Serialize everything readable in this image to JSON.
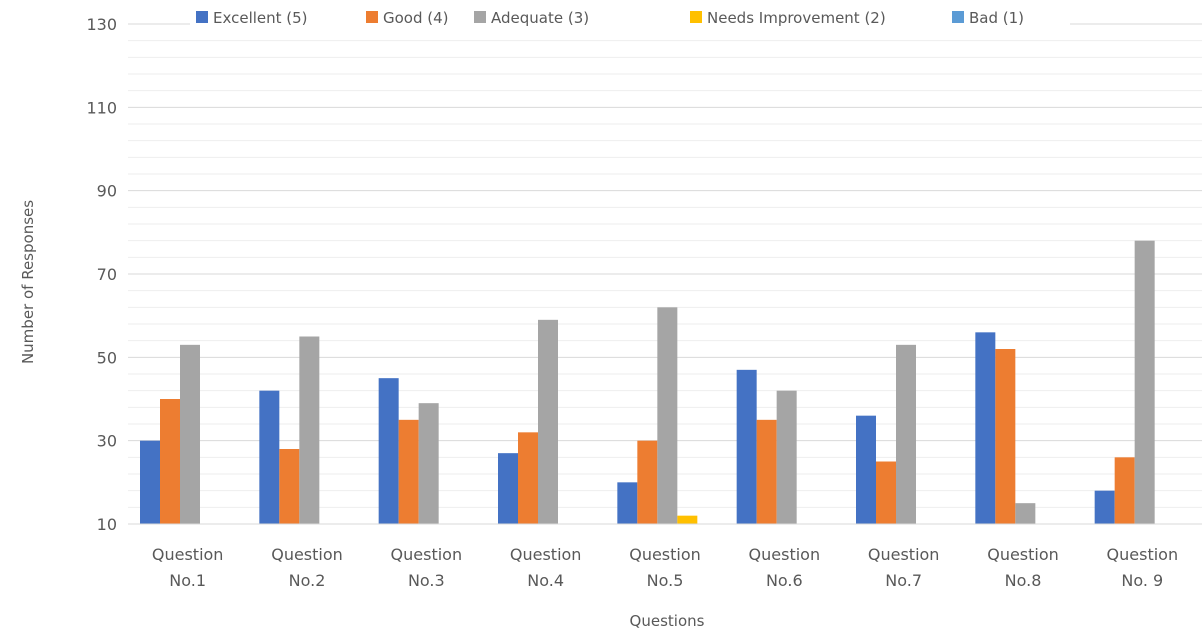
{
  "chart_data": {
    "type": "bar",
    "title": "",
    "xlabel": "Questions",
    "ylabel": "Number of Responses",
    "ylim": [
      10,
      130
    ],
    "yticks": [
      10,
      30,
      50,
      70,
      90,
      110,
      130
    ],
    "grid": true,
    "legend_position": "top",
    "categories": [
      [
        "Question",
        "No.1"
      ],
      [
        "Question",
        "No.2"
      ],
      [
        "Question",
        "No.3"
      ],
      [
        "Question",
        "No.4"
      ],
      [
        "Question",
        "No.5"
      ],
      [
        "Question",
        "No.6"
      ],
      [
        "Question",
        "No.7"
      ],
      [
        "Question",
        "No.8"
      ],
      [
        "Question",
        "No. 9"
      ]
    ],
    "series": [
      {
        "name": "Excellent (5)",
        "color": "#4472C4",
        "values": [
          30,
          42,
          45,
          27,
          20,
          47,
          36,
          56,
          18
        ]
      },
      {
        "name": "Good (4)",
        "color": "#ED7D31",
        "values": [
          40,
          28,
          35,
          32,
          30,
          35,
          25,
          52,
          26
        ]
      },
      {
        "name": "Adequate (3)",
        "color": "#A5A5A5",
        "values": [
          53,
          55,
          39,
          59,
          62,
          42,
          53,
          15,
          78
        ]
      },
      {
        "name": "Needs Improvement (2)",
        "color": "#FFC000",
        "values": [
          0,
          0,
          0,
          0,
          12,
          0,
          0,
          0,
          0
        ]
      },
      {
        "name": "Bad (1)",
        "color": "#5B9BD5",
        "values": [
          0,
          0,
          0,
          0,
          0,
          0,
          0,
          0,
          0
        ]
      }
    ]
  }
}
